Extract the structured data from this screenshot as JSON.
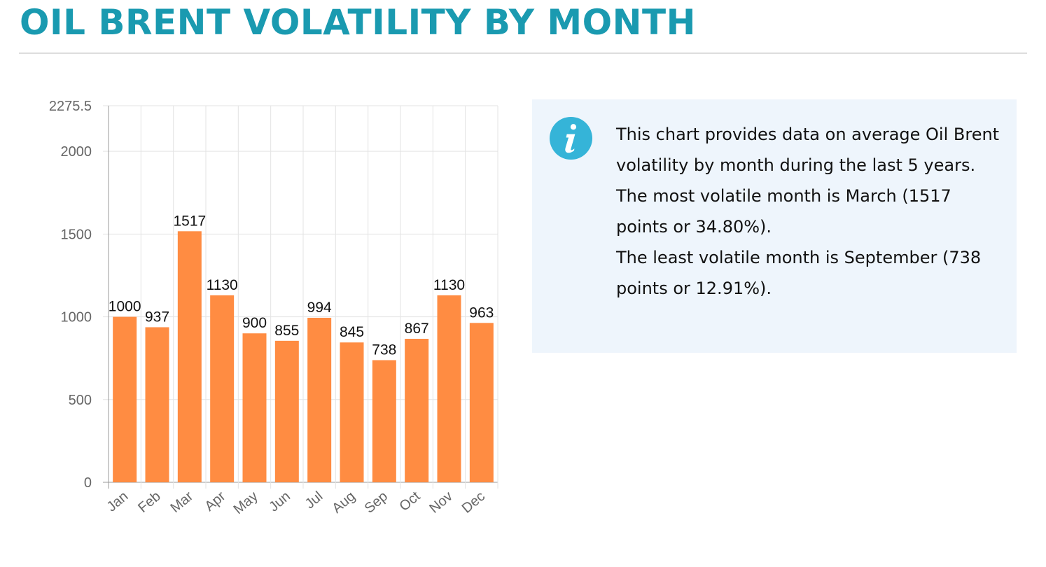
{
  "page": {
    "title": "OIL BRENT VOLATILITY BY MONTH"
  },
  "info": {
    "icon": "info-icon",
    "paragraphs": [
      "This chart provides data on average Oil Brent volatility by month during the last 5 years.",
      "The most volatile month is March (1517 points or 34.80%).",
      "The least volatile month is September (738 points or 12.91%)."
    ]
  },
  "colors": {
    "title": "#1a9ab0",
    "bar": "#ff8c42",
    "info_background": "#eef5fc",
    "info_icon": "#35b4d8"
  },
  "chart_data": {
    "type": "bar",
    "categories": [
      "Jan",
      "Feb",
      "Mar",
      "Apr",
      "May",
      "Jun",
      "Jul",
      "Aug",
      "Sep",
      "Oct",
      "Nov",
      "Dec"
    ],
    "values": [
      1000,
      937,
      1517,
      1130,
      900,
      855,
      994,
      845,
      738,
      867,
      1130,
      963
    ],
    "data_labels": [
      "1000",
      "937",
      "1517",
      "1130",
      "900",
      "855",
      "994",
      "845",
      "738",
      "867",
      "1130",
      "963"
    ],
    "ylim": [
      0,
      2275.5
    ],
    "yticks": [
      0,
      500,
      1000,
      1500,
      2000,
      2275.5
    ],
    "ytick_labels": [
      "0",
      "500",
      "1000",
      "1500",
      "2000",
      "2275.5"
    ],
    "grid": true,
    "legend": "none",
    "title": "",
    "xlabel": "",
    "ylabel": ""
  }
}
